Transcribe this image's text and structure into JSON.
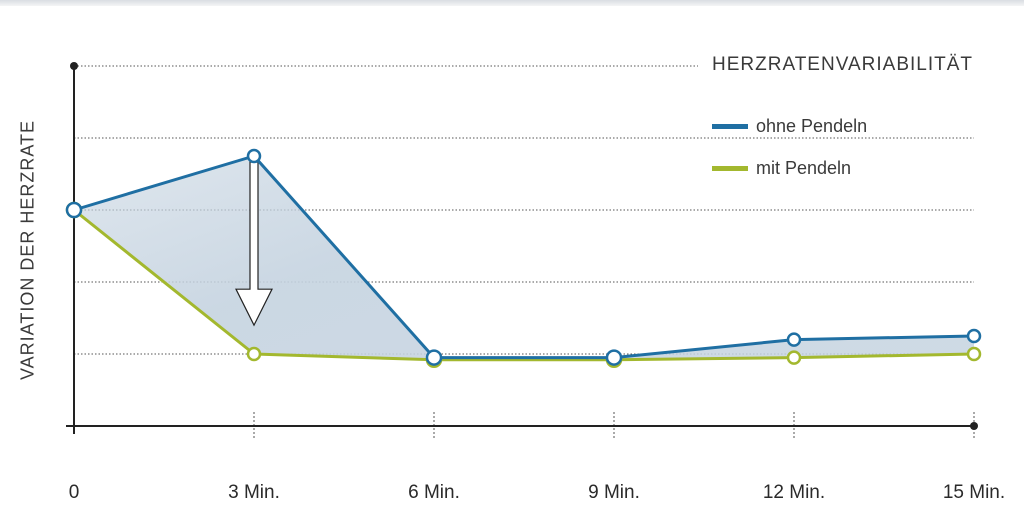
{
  "chart_data": {
    "type": "line",
    "ylabel": "VARIATION DER HERZRATE",
    "xlabel": "",
    "categories": [
      "0",
      "3 Min.",
      "6 Min.",
      "9 Min.",
      "12 Min.",
      "15 Min."
    ],
    "ylim": [
      0,
      5
    ],
    "grid": true,
    "legend": {
      "title": "HERZRATENVARIABILITÄT",
      "placement": "top-right"
    },
    "series": [
      {
        "name": "ohne Pendeln",
        "color": "#1f6fa3",
        "values": [
          3.0,
          3.75,
          0.95,
          0.95,
          1.2,
          1.25
        ]
      },
      {
        "name": "mit Pendeln",
        "color": "#a3b82e",
        "values": [
          3.0,
          1.0,
          0.92,
          0.92,
          0.95,
          1.0
        ]
      }
    ],
    "shaded_area_color": "#c5d3e0"
  }
}
